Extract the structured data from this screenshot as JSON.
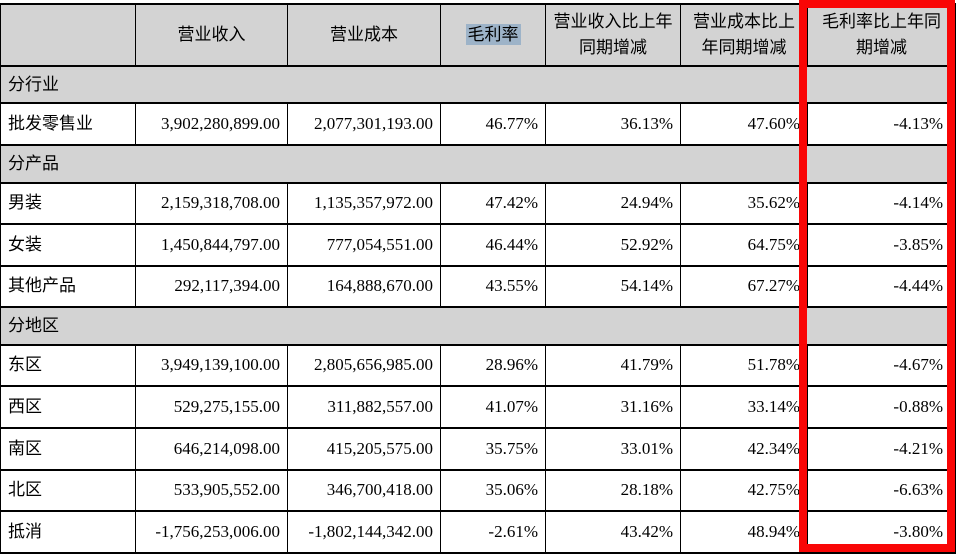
{
  "table": {
    "columns": [
      {
        "label": ""
      },
      {
        "label": "营业收入"
      },
      {
        "label": "营业成本"
      },
      {
        "label": "毛利率"
      },
      {
        "label": "营业收入比上年同期增减"
      },
      {
        "label": "营业成本比上年同期增减"
      },
      {
        "label": "毛利率比上年同期增减"
      }
    ],
    "highlight_column_index": 3,
    "rows": [
      {
        "type": "section",
        "label": "分行业"
      },
      {
        "type": "data",
        "label": "批发零售业",
        "values": [
          "3,902,280,899.00",
          "2,077,301,193.00",
          "46.77%",
          "36.13%",
          "47.60%",
          "-4.13%"
        ]
      },
      {
        "type": "section",
        "label": "分产品"
      },
      {
        "type": "data",
        "label": "男装",
        "values": [
          "2,159,318,708.00",
          "1,135,357,972.00",
          "47.42%",
          "24.94%",
          "35.62%",
          "-4.14%"
        ]
      },
      {
        "type": "data",
        "label": "女装",
        "values": [
          "1,450,844,797.00",
          "777,054,551.00",
          "46.44%",
          "52.92%",
          "64.75%",
          "-3.85%"
        ]
      },
      {
        "type": "data",
        "label": "其他产品",
        "values": [
          "292,117,394.00",
          "164,888,670.00",
          "43.55%",
          "54.14%",
          "67.27%",
          "-4.44%"
        ]
      },
      {
        "type": "section",
        "label": "分地区"
      },
      {
        "type": "data",
        "label": "东区",
        "values": [
          "3,949,139,100.00",
          "2,805,656,985.00",
          "28.96%",
          "41.79%",
          "51.78%",
          "-4.67%"
        ]
      },
      {
        "type": "data",
        "label": "西区",
        "values": [
          "529,275,155.00",
          "311,882,557.00",
          "41.07%",
          "31.16%",
          "33.14%",
          "-0.88%"
        ]
      },
      {
        "type": "data",
        "label": "南区",
        "values": [
          "646,214,098.00",
          "415,205,575.00",
          "35.75%",
          "33.01%",
          "42.34%",
          "-4.21%"
        ]
      },
      {
        "type": "data",
        "label": "北区",
        "values": [
          "533,905,552.00",
          "346,700,418.00",
          "35.06%",
          "28.18%",
          "42.75%",
          "-6.63%"
        ]
      },
      {
        "type": "data",
        "label": "抵消",
        "values": [
          "-1,756,253,006.00",
          "-1,802,144,342.00",
          "-2.61%",
          "43.42%",
          "48.94%",
          "-3.80%"
        ]
      }
    ]
  },
  "annotation": {
    "type": "red-box-highlight",
    "highlighted_column": "毛利率比上年同期增减",
    "color": "#f90606"
  },
  "colors": {
    "header_background": "#d3d3d3",
    "section_background": "#d3d3d3",
    "text_selection_highlight": "#9db3c8",
    "border": "#000000",
    "annotation_red": "#f90606"
  }
}
